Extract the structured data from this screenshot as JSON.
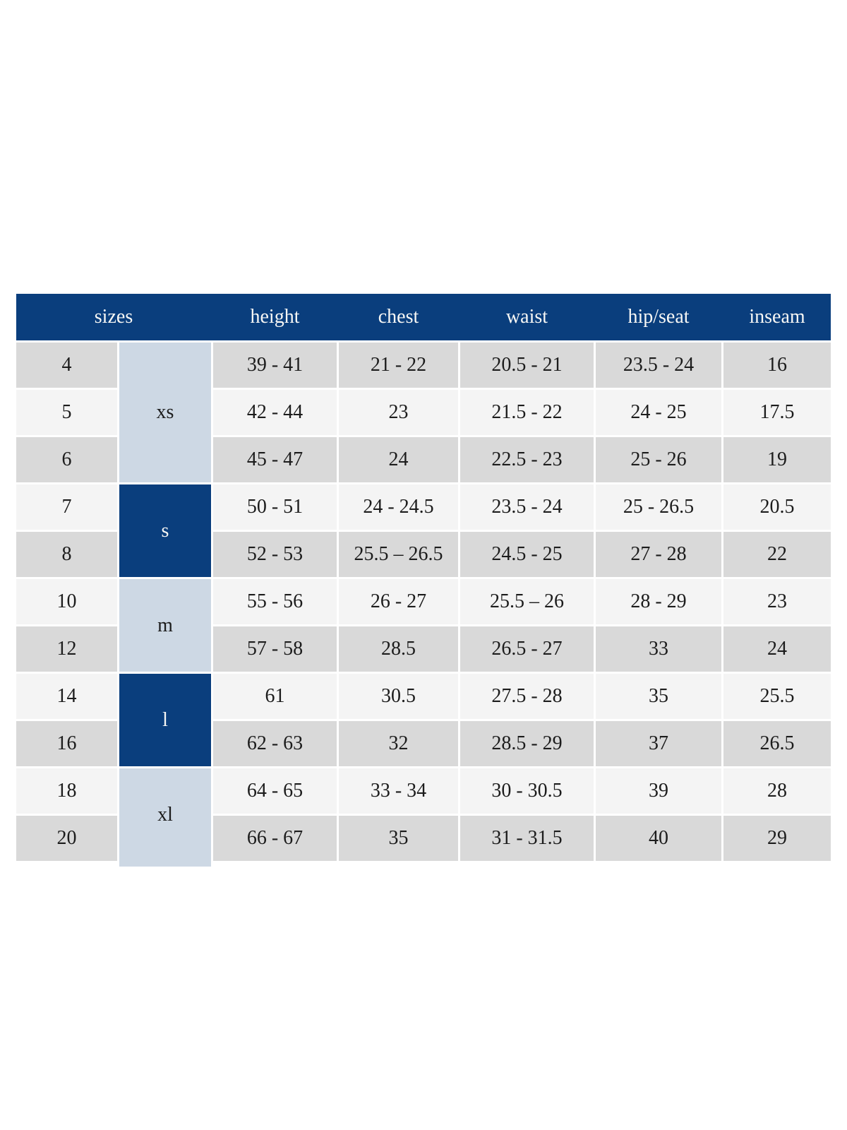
{
  "chart_data": {
    "type": "table",
    "header": {
      "sizes": "sizes",
      "height": "height",
      "chest": "chest",
      "waist": "waist",
      "hip_seat": "hip/seat",
      "inseam": "inseam"
    },
    "groups": [
      {
        "label": "xs",
        "rows_spanned": 3,
        "variant": "light"
      },
      {
        "label": "s",
        "rows_spanned": 2,
        "variant": "dark"
      },
      {
        "label": "m",
        "rows_spanned": 2,
        "variant": "light"
      },
      {
        "label": "l",
        "rows_spanned": 2,
        "variant": "dark"
      },
      {
        "label": "xl",
        "rows_spanned": 2,
        "variant": "light"
      }
    ],
    "rows": [
      {
        "size": "4",
        "group": "xs",
        "height": "39 - 41",
        "chest": "21 - 22",
        "waist": "20.5 - 21",
        "hip_seat": "23.5 - 24",
        "inseam": "16"
      },
      {
        "size": "5",
        "group": "xs",
        "height": "42 - 44",
        "chest": "23",
        "waist": "21.5 - 22",
        "hip_seat": "24 - 25",
        "inseam": "17.5"
      },
      {
        "size": "6",
        "group": "xs",
        "height": "45 - 47",
        "chest": "24",
        "waist": "22.5 - 23",
        "hip_seat": "25 - 26",
        "inseam": "19"
      },
      {
        "size": "7",
        "group": "s",
        "height": "50 - 51",
        "chest": "24 - 24.5",
        "waist": "23.5 - 24",
        "hip_seat": "25 - 26.5",
        "inseam": "20.5"
      },
      {
        "size": "8",
        "group": "s",
        "height": "52 - 53",
        "chest": "25.5 – 26.5",
        "waist": "24.5 - 25",
        "hip_seat": "27 - 28",
        "inseam": "22"
      },
      {
        "size": "10",
        "group": "m",
        "height": "55 - 56",
        "chest": "26 - 27",
        "waist": "25.5 – 26",
        "hip_seat": "28 - 29",
        "inseam": "23"
      },
      {
        "size": "12",
        "group": "m",
        "height": "57 - 58",
        "chest": "28.5",
        "waist": "26.5 - 27",
        "hip_seat": "33",
        "inseam": "24"
      },
      {
        "size": "14",
        "group": "l",
        "height": "61",
        "chest": "30.5",
        "waist": "27.5 - 28",
        "hip_seat": "35",
        "inseam": "25.5"
      },
      {
        "size": "16",
        "group": "l",
        "height": "62 - 63",
        "chest": "32",
        "waist": "28.5 - 29",
        "hip_seat": "37",
        "inseam": "26.5"
      },
      {
        "size": "18",
        "group": "xl",
        "height": "64 - 65",
        "chest": "33 - 34",
        "waist": "30 - 30.5",
        "hip_seat": "39",
        "inseam": "28"
      },
      {
        "size": "20",
        "group": "xl",
        "height": "66 - 67",
        "chest": "35",
        "waist": "31 - 31.5",
        "hip_seat": "40",
        "inseam": "29"
      }
    ],
    "colors": {
      "dark_blue": "#0a3e7d",
      "light_blue": "#cdd8e4",
      "row_gray": "#d9d9d9",
      "row_light": "#f4f4f4",
      "header_text": "#f7f7f5",
      "text_dark": "#1c1c1c",
      "page_background": "#ffffff"
    },
    "layout": {
      "grid_lines": "white gaps",
      "legend": "none",
      "title": ""
    }
  }
}
